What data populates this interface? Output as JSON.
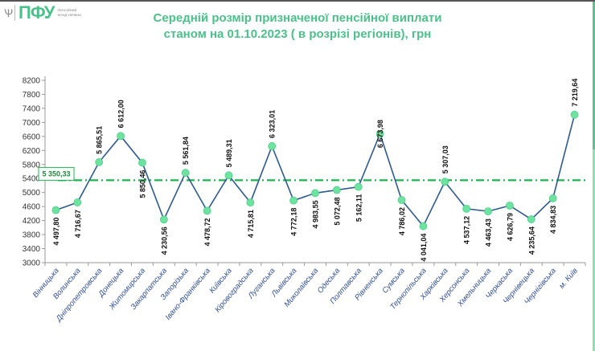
{
  "logo": {
    "text": "ПФУ",
    "subtitle": "ПЕНСІЙНИЙ ФОНД УКРАЇНИ"
  },
  "colors": {
    "line": "#2e5a8c",
    "marker": "#6ee2a0",
    "average": "#1db34f",
    "title": "#4cbf8a",
    "axis_text": "#2f4f8f"
  },
  "chart_data": {
    "type": "line",
    "title": "Середній розмір призначеної пенсійної виплати",
    "subtitle": "станом на 01.10.2023 ( в розрізі регіонів), грн",
    "categories": [
      "Вінницька",
      "Волинська",
      "Дніпропетровська",
      "Донецька",
      "Житомирська",
      "Закарпатська",
      "Запорізька",
      "Івано-Франківська",
      "Київська",
      "Кіровоградська",
      "Луганська",
      "Львівська",
      "Миколаївська",
      "Одеська",
      "Полтавська",
      "Рівненська",
      "Сумська",
      "Тернопільська",
      "Харківська",
      "Херсонська",
      "Хмельницька",
      "Черкаська",
      "Чернівецька",
      "Чернігівська",
      "м. Київ"
    ],
    "values": [
      4497.8,
      4716.67,
      5865.51,
      6612.0,
      5850.46,
      4230.56,
      5561.84,
      4478.72,
      5489.31,
      4715.81,
      6323.01,
      4772.18,
      4983.55,
      5072.48,
      5162.11,
      6673.98,
      4786.02,
      4041.04,
      5307.03,
      4537.12,
      4463.43,
      4626.79,
      4235.64,
      4834.83,
      7219.64
    ],
    "labels": [
      "4 497,80",
      "4 716,67",
      "5 865,51",
      "6 612,00",
      "5 850,46",
      "4 230,56",
      "5 561,84",
      "4 478,72",
      "5 489,31",
      "4 715,81",
      "6 323,01",
      "4 772,18",
      "4 983,55",
      "5 072,48",
      "5 162,11",
      "6 673,98",
      "4 786,02",
      "4 041,04",
      "5 307,03",
      "4 537,12",
      "4 463,43",
      "4 626,79",
      "4 235,64",
      "4 834,83",
      "7 219,64"
    ],
    "average": {
      "value": 5350.33,
      "label": "5 350,33"
    },
    "ylim": [
      3000,
      8200
    ],
    "yticks": [
      "3000",
      "3400",
      "3800",
      "4200",
      "4600",
      "5000",
      "5400",
      "5800",
      "6200",
      "6600",
      "7000",
      "7400",
      "7800",
      "8200"
    ],
    "grid": false,
    "legend": "none"
  }
}
